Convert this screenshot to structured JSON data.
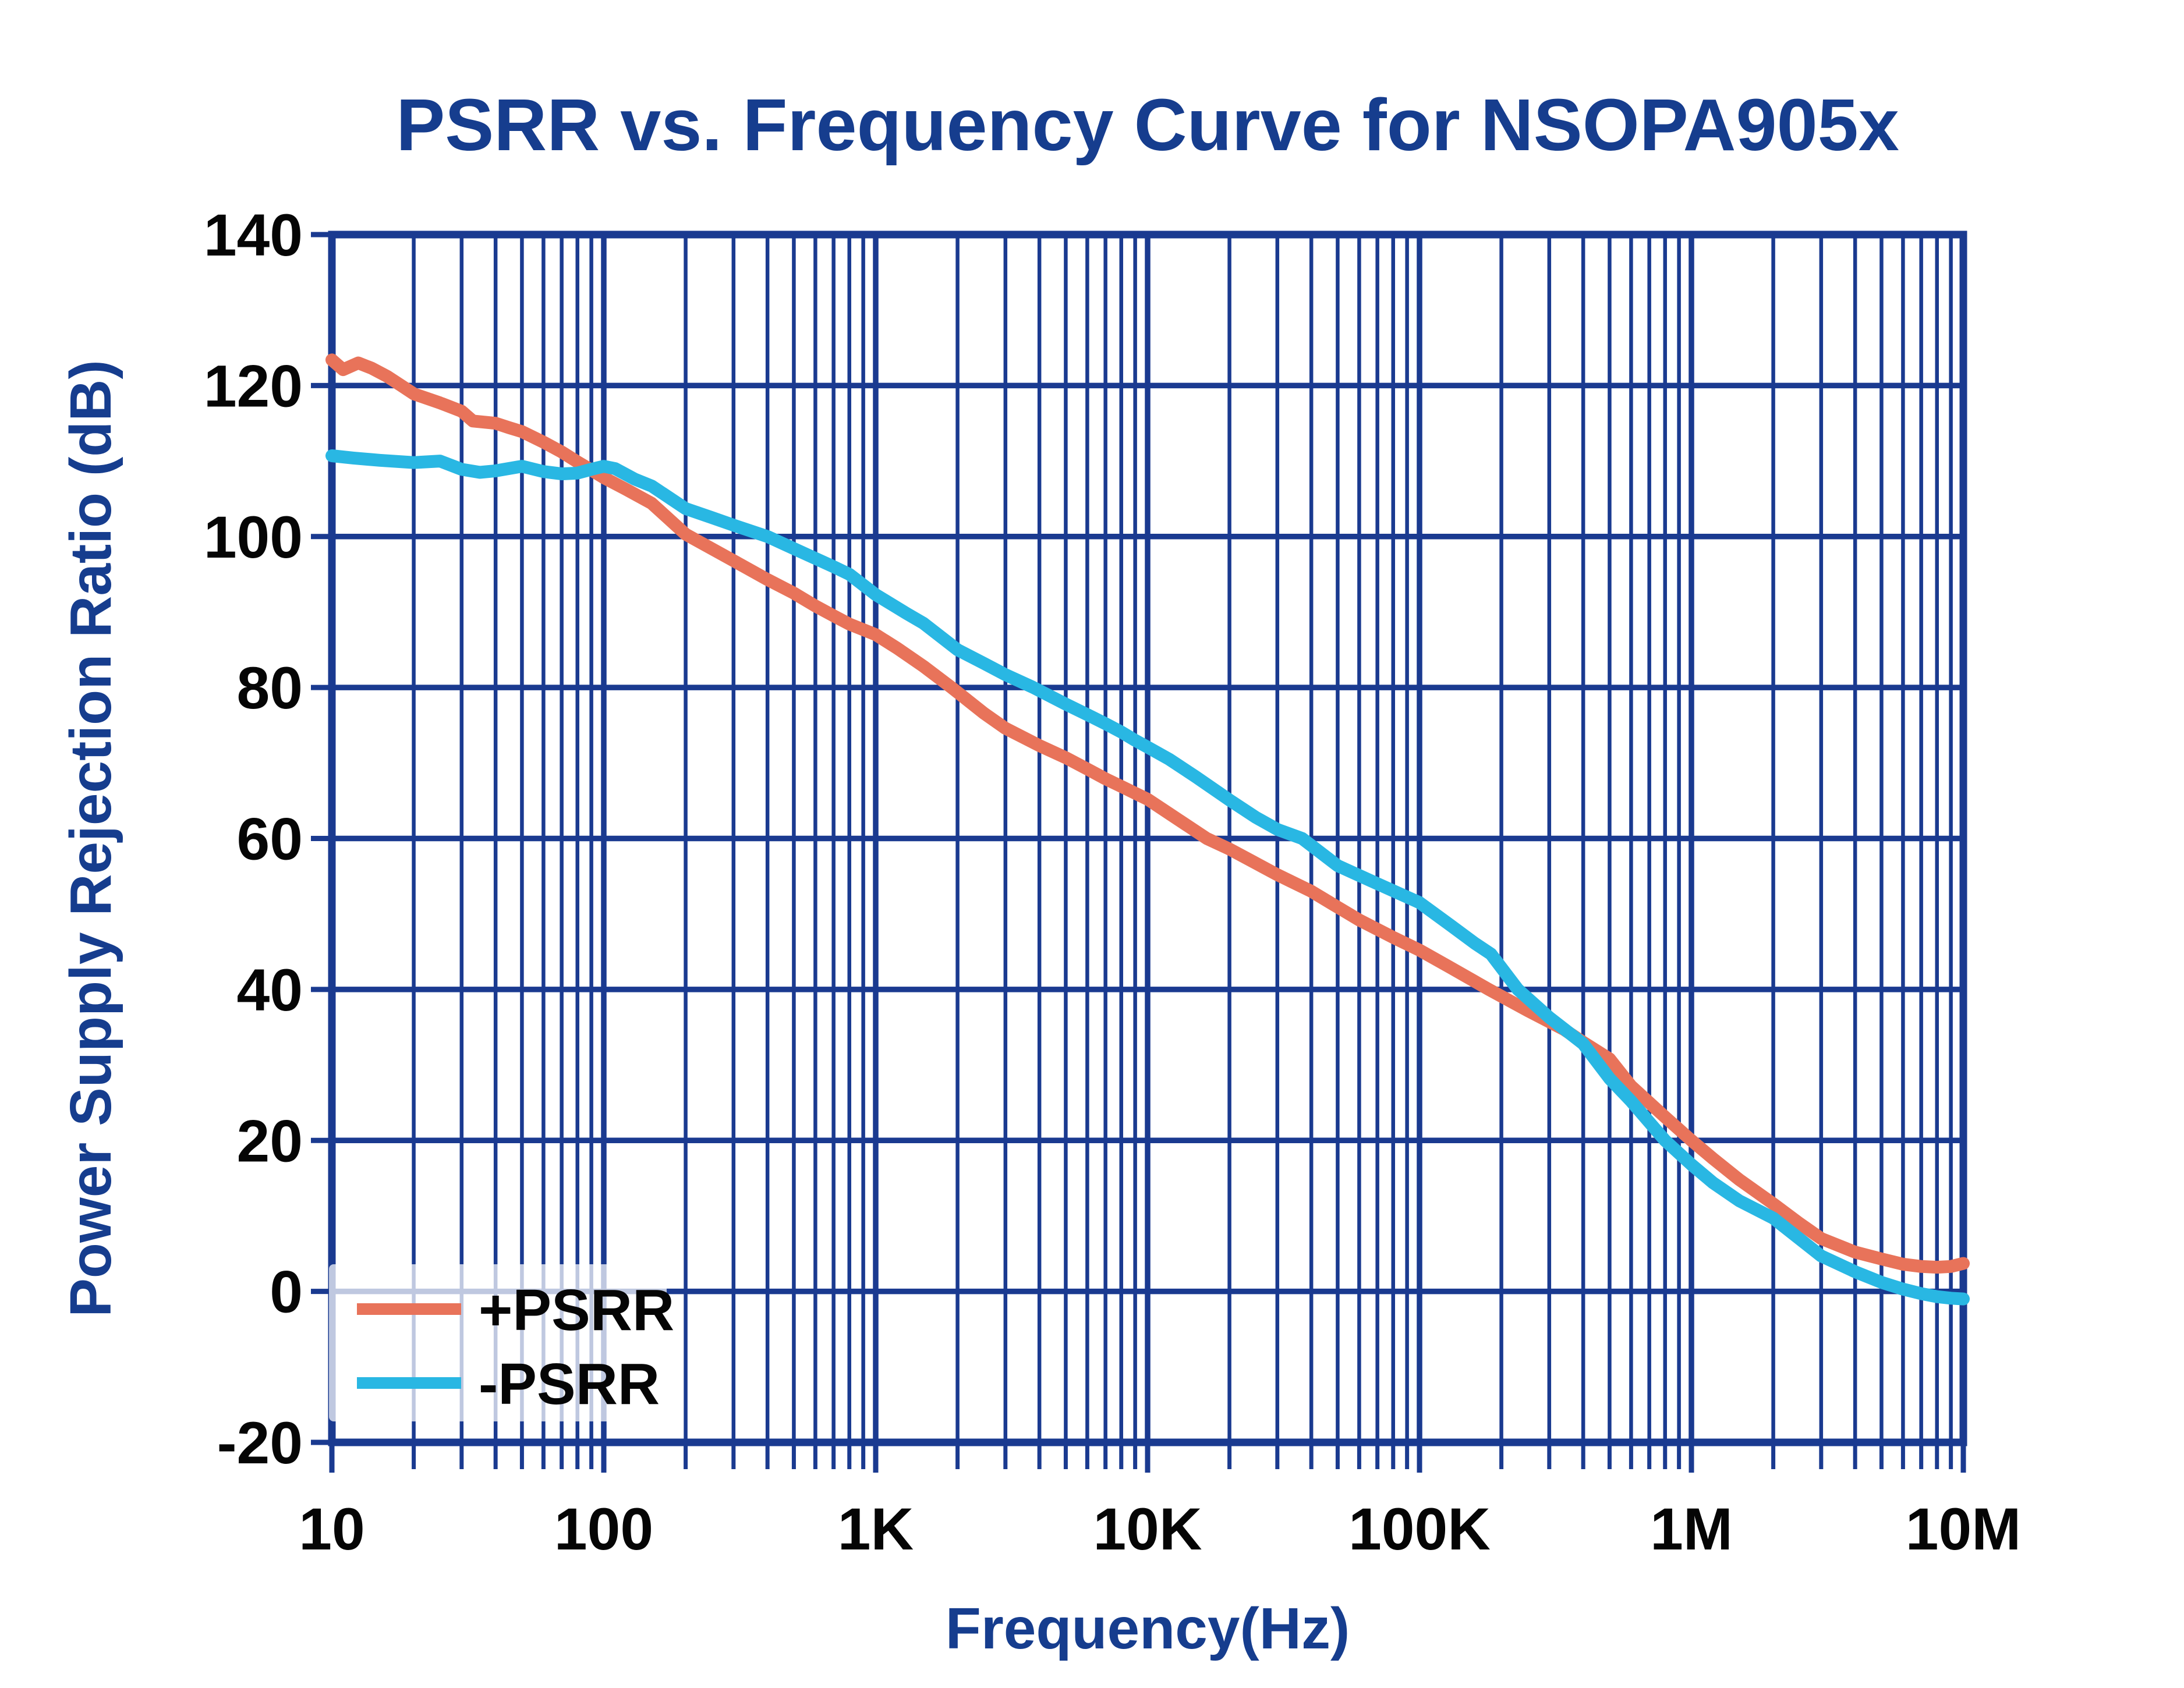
{
  "chart_data": {
    "type": "line",
    "title": "PSRR vs. Frequency Curve for NSOPA905x",
    "xlabel": "Frequency(Hz)",
    "ylabel": "Power Supply Rejection Ratio (dB)",
    "x_axis": {
      "scale": "log",
      "min": 10,
      "max": 10000000,
      "major_ticks": [
        10,
        100,
        1000,
        10000,
        100000,
        1000000,
        10000000
      ],
      "major_tick_labels": [
        "10",
        "100",
        "1K",
        "10K",
        "100K",
        "1M",
        "10M"
      ],
      "minor_multipliers": [
        2,
        3,
        4,
        5,
        6,
        7,
        8,
        9
      ]
    },
    "y_axis": {
      "scale": "linear",
      "min": -20,
      "max": 140,
      "step": 20,
      "tick_labels": [
        "140",
        "120",
        "100",
        "80",
        "60",
        "40",
        "20",
        "0",
        "-20"
      ]
    },
    "grid": "on",
    "legend_position": "lower-left-inside",
    "series": [
      {
        "name": "+PSRR",
        "color": "#E8735A",
        "points": [
          [
            10,
            123.4
          ],
          [
            11,
            122.1
          ],
          [
            12.5,
            123.0
          ],
          [
            14,
            122.3
          ],
          [
            16,
            121.2
          ],
          [
            18,
            120.0
          ],
          [
            20,
            118.9
          ],
          [
            25,
            117.7
          ],
          [
            30,
            116.6
          ],
          [
            33,
            115.3
          ],
          [
            40,
            115.0
          ],
          [
            45,
            114.4
          ],
          [
            50,
            113.9
          ],
          [
            60,
            112.5
          ],
          [
            70,
            111.2
          ],
          [
            80,
            109.9
          ],
          [
            90,
            108.8
          ],
          [
            100,
            107.8
          ],
          [
            120,
            106.3
          ],
          [
            150,
            104.4
          ],
          [
            200,
            100.3
          ],
          [
            300,
            96.8
          ],
          [
            400,
            94.3
          ],
          [
            500,
            92.5
          ],
          [
            600,
            90.8
          ],
          [
            700,
            89.5
          ],
          [
            800,
            88.4
          ],
          [
            1000,
            87.0
          ],
          [
            1200,
            85.2
          ],
          [
            1500,
            82.8
          ],
          [
            1900,
            80.0
          ],
          [
            2500,
            76.6
          ],
          [
            3000,
            74.6
          ],
          [
            4000,
            72.3
          ],
          [
            5000,
            70.7
          ],
          [
            6000,
            69.2
          ],
          [
            7000,
            67.9
          ],
          [
            8000,
            66.9
          ],
          [
            9000,
            66.0
          ],
          [
            10000,
            65.2
          ],
          [
            12000,
            63.3
          ],
          [
            16500,
            60.0
          ],
          [
            20000,
            58.6
          ],
          [
            30000,
            55.2
          ],
          [
            40000,
            53.0
          ],
          [
            50000,
            50.9
          ],
          [
            60000,
            49.2
          ],
          [
            80000,
            46.9
          ],
          [
            100000,
            45.2
          ],
          [
            130000,
            42.9
          ],
          [
            180000,
            40.0
          ],
          [
            250000,
            37.2
          ],
          [
            340000,
            34.7
          ],
          [
            400000,
            33.0
          ],
          [
            500000,
            30.8
          ],
          [
            600000,
            27.2
          ],
          [
            800000,
            23.1
          ],
          [
            1000000,
            20.0
          ],
          [
            1200000,
            17.6
          ],
          [
            1500000,
            14.8
          ],
          [
            2000000,
            11.6
          ],
          [
            2500000,
            9.0
          ],
          [
            3000000,
            7.0
          ],
          [
            4000000,
            5.2
          ],
          [
            5000000,
            4.3
          ],
          [
            6000000,
            3.6
          ],
          [
            7000000,
            3.3
          ],
          [
            8000000,
            3.2
          ],
          [
            9000000,
            3.3
          ],
          [
            10000000,
            3.7
          ]
        ]
      },
      {
        "name": "-PSRR",
        "color": "#29B7E3",
        "points": [
          [
            10,
            110.7
          ],
          [
            12,
            110.4
          ],
          [
            15,
            110.1
          ],
          [
            20,
            109.8
          ],
          [
            25,
            110.0
          ],
          [
            30,
            108.9
          ],
          [
            35,
            108.5
          ],
          [
            40,
            108.7
          ],
          [
            50,
            109.3
          ],
          [
            60,
            108.6
          ],
          [
            70,
            108.3
          ],
          [
            80,
            108.4
          ],
          [
            90,
            108.9
          ],
          [
            100,
            109.3
          ],
          [
            110,
            109.0
          ],
          [
            130,
            107.6
          ],
          [
            150,
            106.7
          ],
          [
            200,
            103.7
          ],
          [
            250,
            102.5
          ],
          [
            300,
            101.5
          ],
          [
            400,
            100.0
          ],
          [
            500,
            98.4
          ],
          [
            600,
            97.1
          ],
          [
            700,
            96.0
          ],
          [
            800,
            95.0
          ],
          [
            1000,
            92.3
          ],
          [
            1300,
            89.8
          ],
          [
            1500,
            88.5
          ],
          [
            2000,
            85.0
          ],
          [
            2500,
            83.2
          ],
          [
            3000,
            81.7
          ],
          [
            3800,
            80.0
          ],
          [
            5000,
            77.8
          ],
          [
            6000,
            76.4
          ],
          [
            7000,
            75.2
          ],
          [
            8000,
            74.1
          ],
          [
            9000,
            73.0
          ],
          [
            10000,
            72.1
          ],
          [
            12000,
            70.5
          ],
          [
            15000,
            68.2
          ],
          [
            20000,
            65.1
          ],
          [
            25000,
            62.8
          ],
          [
            30000,
            61.2
          ],
          [
            37000,
            60.0
          ],
          [
            50000,
            56.4
          ],
          [
            70000,
            54.0
          ],
          [
            100000,
            51.5
          ],
          [
            130000,
            48.5
          ],
          [
            160000,
            46.1
          ],
          [
            183000,
            44.7
          ],
          [
            230000,
            40.0
          ],
          [
            300000,
            36.3
          ],
          [
            400000,
            32.8
          ],
          [
            500000,
            28.2
          ],
          [
            600000,
            25.2
          ],
          [
            700000,
            22.4
          ],
          [
            800000,
            20.0
          ],
          [
            1000000,
            16.8
          ],
          [
            1200000,
            14.4
          ],
          [
            1500000,
            12.0
          ],
          [
            2000000,
            9.7
          ],
          [
            3000000,
            4.7
          ],
          [
            4000000,
            2.6
          ],
          [
            5000000,
            1.2
          ],
          [
            6000000,
            0.3
          ],
          [
            7000000,
            -0.3
          ],
          [
            8000000,
            -0.7
          ],
          [
            9000000,
            -0.9
          ],
          [
            10000000,
            -1.0
          ]
        ]
      }
    ]
  },
  "legend": {
    "items": [
      {
        "label": "+PSRR",
        "color": "#E8735A"
      },
      {
        "label": "-PSRR",
        "color": "#29B7E3"
      }
    ]
  },
  "colors": {
    "grid": "#1A3A90",
    "border": "#1A3A90",
    "tick_text": "#050505",
    "blue_text": "#163D8E",
    "background": "#ffffff",
    "legend_bg": "rgba(255,255,255,0.72)"
  }
}
